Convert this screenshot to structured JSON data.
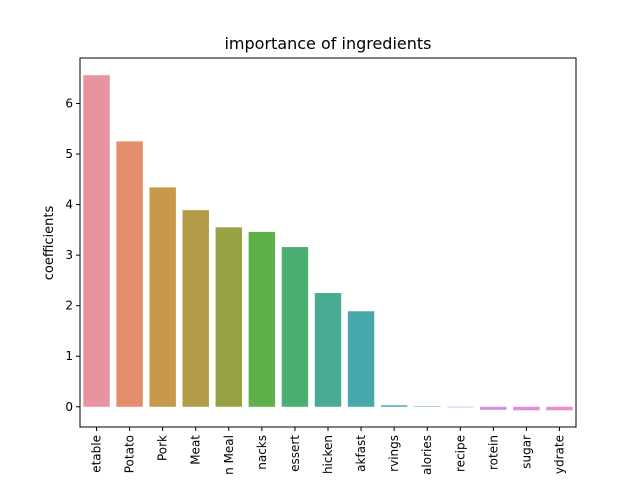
{
  "chart_data": {
    "type": "bar",
    "title": "importance of ingredients",
    "xlabel": "",
    "ylabel": "coefficients",
    "categories": [
      "etable",
      "Potato",
      "Pork",
      "Meat",
      "n Meal",
      "nacks",
      "essert",
      "hicken",
      "akfast",
      "rvings",
      "alories",
      "recipe",
      "rotein",
      "sugar",
      "ydrate"
    ],
    "values": [
      6.56,
      5.25,
      4.34,
      3.89,
      3.55,
      3.46,
      3.16,
      2.25,
      1.89,
      0.03,
      0.01,
      0.0,
      -0.06,
      -0.07,
      -0.07
    ],
    "colors": [
      "#e8949f",
      "#e38d6a",
      "#c8994a",
      "#b39c47",
      "#98a244",
      "#5fb04b",
      "#4cae70",
      "#4aab95",
      "#47a9ab",
      "#4aa9c5",
      "#5da2da",
      "#9e9ae8",
      "#d38ee3",
      "#e58ad8",
      "#e891be"
    ],
    "ylim": [
      -0.4,
      6.9
    ],
    "yticks": [
      0,
      1,
      2,
      3,
      4,
      5,
      6
    ],
    "grid": false,
    "legend": "none"
  }
}
